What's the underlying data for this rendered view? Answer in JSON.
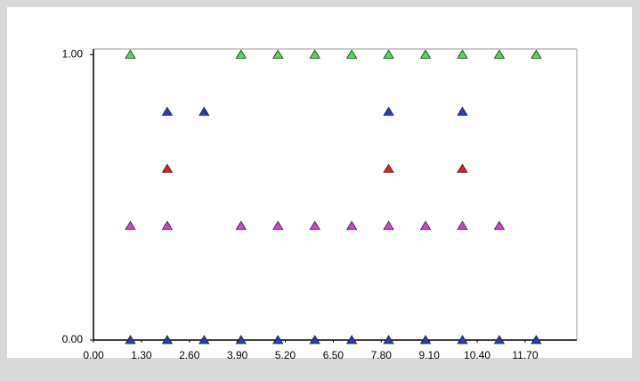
{
  "chart_data": {
    "type": "scatter",
    "xlim": [
      0,
      13.1
    ],
    "ylim": [
      0,
      1.02
    ],
    "xticks": [
      {
        "value": 0,
        "label": "0.00"
      },
      {
        "value": 1.3,
        "label": "1.30"
      },
      {
        "value": 2.6,
        "label": "2.60"
      },
      {
        "value": 3.9,
        "label": "3.90"
      },
      {
        "value": 5.2,
        "label": "5.20"
      },
      {
        "value": 6.5,
        "label": "6.50"
      },
      {
        "value": 7.8,
        "label": "7.80"
      },
      {
        "value": 9.1,
        "label": "9.10"
      },
      {
        "value": 10.4,
        "label": "10.40"
      },
      {
        "value": 11.7,
        "label": "11.70"
      }
    ],
    "yticks": [
      {
        "value": 0,
        "label": "0.00"
      },
      {
        "value": 1,
        "label": "1.00"
      }
    ],
    "series": [
      {
        "color": "#3ee83e",
        "x": [
          1,
          4,
          5,
          6,
          7,
          8,
          9,
          10,
          11,
          12
        ],
        "values": [
          1,
          1,
          1,
          1,
          1,
          1,
          1,
          1,
          1,
          1
        ]
      },
      {
        "color": "#1f3fc8",
        "x": [
          2,
          3,
          8,
          10
        ],
        "values": [
          0.8,
          0.8,
          0.8,
          0.8
        ]
      },
      {
        "color": "#e82020",
        "x": [
          2,
          8,
          10
        ],
        "values": [
          0.6,
          0.6,
          0.6
        ]
      },
      {
        "color": "#dc3cdc",
        "x": [
          1,
          2,
          4,
          5,
          6,
          7,
          8,
          9,
          10,
          11
        ],
        "values": [
          0.4,
          0.4,
          0.4,
          0.4,
          0.4,
          0.4,
          0.4,
          0.4,
          0.4,
          0.4
        ]
      },
      {
        "color": "#1f3fc8",
        "x": [
          1,
          2,
          3,
          4,
          5,
          6,
          7,
          8,
          9,
          10,
          11,
          12
        ],
        "values": [
          0,
          0,
          0,
          0,
          0,
          0,
          0,
          0,
          0,
          0,
          0,
          0
        ]
      }
    ]
  }
}
